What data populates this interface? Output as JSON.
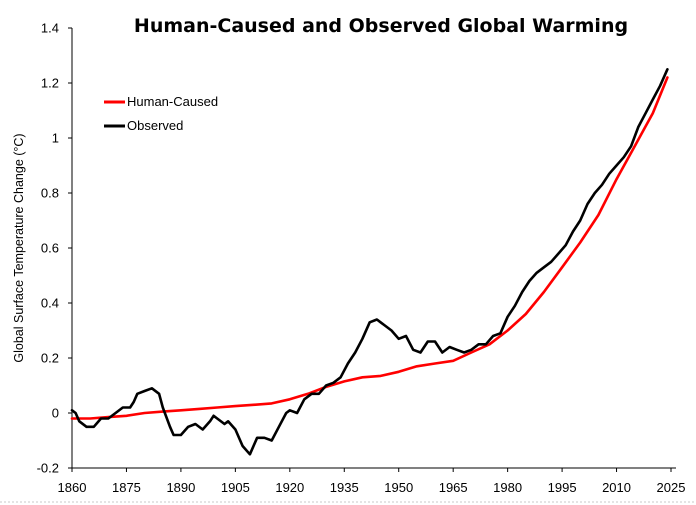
{
  "chart_data": {
    "type": "line",
    "title": "Human-Caused and Observed Global Warming",
    "xlabel": "",
    "ylabel": "Global Surface Temperature Change (°C)",
    "xlim": [
      1860,
      2025
    ],
    "ylim": [
      -0.2,
      1.4
    ],
    "x_ticks": [
      "1860",
      "1875",
      "1890",
      "1905",
      "1920",
      "1935",
      "1950",
      "1965",
      "1980",
      "1995",
      "2010",
      "2025"
    ],
    "y_ticks": [
      "-0.2",
      "0",
      "0.2",
      "0.4",
      "0.6",
      "0.8",
      "1",
      "1.2",
      "1.4"
    ],
    "grid": false,
    "legend_position": "upper-left",
    "series": [
      {
        "name": "Human-Caused",
        "color": "#ff0000",
        "x": [
          1860,
          1865,
          1870,
          1875,
          1880,
          1885,
          1890,
          1895,
          1900,
          1905,
          1910,
          1915,
          1920,
          1925,
          1930,
          1935,
          1940,
          1945,
          1950,
          1955,
          1960,
          1965,
          1970,
          1975,
          1980,
          1985,
          1990,
          1995,
          2000,
          2005,
          2010,
          2015,
          2020,
          2024
        ],
        "y": [
          -0.02,
          -0.02,
          -0.015,
          -0.01,
          0.0,
          0.005,
          0.01,
          0.015,
          0.02,
          0.025,
          0.03,
          0.035,
          0.05,
          0.07,
          0.095,
          0.115,
          0.13,
          0.135,
          0.15,
          0.17,
          0.18,
          0.19,
          0.22,
          0.25,
          0.3,
          0.36,
          0.44,
          0.53,
          0.62,
          0.72,
          0.85,
          0.97,
          1.09,
          1.22
        ]
      },
      {
        "name": "Observed",
        "color": "#000000",
        "x": [
          1860,
          1861,
          1862,
          1864,
          1866,
          1868,
          1870,
          1872,
          1874,
          1876,
          1877,
          1878,
          1880,
          1882,
          1884,
          1885,
          1887,
          1888,
          1890,
          1892,
          1894,
          1896,
          1898,
          1899,
          1900,
          1902,
          1903,
          1905,
          1907,
          1909,
          1911,
          1913,
          1915,
          1917,
          1919,
          1920,
          1922,
          1924,
          1926,
          1928,
          1930,
          1932,
          1934,
          1936,
          1938,
          1940,
          1942,
          1944,
          1945,
          1946,
          1948,
          1950,
          1952,
          1954,
          1956,
          1958,
          1960,
          1962,
          1964,
          1966,
          1968,
          1970,
          1972,
          1974,
          1976,
          1978,
          1980,
          1982,
          1984,
          1986,
          1988,
          1990,
          1992,
          1994,
          1996,
          1998,
          2000,
          2002,
          2004,
          2006,
          2008,
          2010,
          2012,
          2014,
          2016,
          2018,
          2020,
          2022,
          2024
        ],
        "y": [
          0.01,
          0.0,
          -0.03,
          -0.05,
          -0.05,
          -0.02,
          -0.02,
          0.0,
          0.02,
          0.02,
          0.04,
          0.07,
          0.08,
          0.09,
          0.07,
          0.02,
          -0.05,
          -0.08,
          -0.08,
          -0.05,
          -0.04,
          -0.06,
          -0.03,
          -0.01,
          -0.02,
          -0.04,
          -0.03,
          -0.06,
          -0.12,
          -0.15,
          -0.09,
          -0.09,
          -0.1,
          -0.05,
          0.0,
          0.01,
          0.0,
          0.05,
          0.07,
          0.07,
          0.1,
          0.11,
          0.13,
          0.18,
          0.22,
          0.27,
          0.33,
          0.34,
          0.33,
          0.32,
          0.3,
          0.27,
          0.28,
          0.23,
          0.22,
          0.26,
          0.26,
          0.22,
          0.24,
          0.23,
          0.22,
          0.23,
          0.25,
          0.25,
          0.28,
          0.29,
          0.35,
          0.39,
          0.44,
          0.48,
          0.51,
          0.53,
          0.55,
          0.58,
          0.61,
          0.66,
          0.7,
          0.76,
          0.8,
          0.83,
          0.87,
          0.9,
          0.93,
          0.97,
          1.04,
          1.09,
          1.14,
          1.19,
          1.25
        ]
      }
    ]
  }
}
